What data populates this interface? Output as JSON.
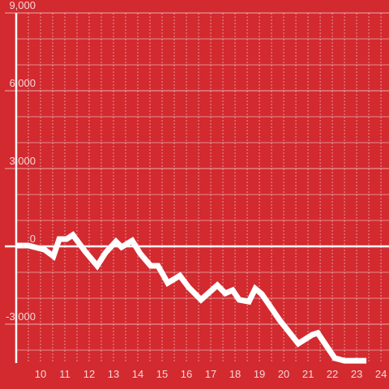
{
  "chart_data": {
    "type": "line",
    "background": "#d22a2f",
    "color": "#ffffff",
    "grid": true,
    "xlim": [
      9,
      24.33
    ],
    "xticks": [
      10,
      11,
      12,
      13,
      14,
      15,
      16,
      17,
      18,
      19,
      20,
      21,
      22,
      23,
      24
    ],
    "xminor": [
      9.5,
      10.5,
      11.5,
      12.5,
      13.5,
      14.5,
      15.5,
      16.5,
      17.5,
      18.5,
      19.5,
      20.5,
      21.5,
      22.5,
      23.5
    ],
    "ylim": [
      -4500,
      9000
    ],
    "yticks": [
      {
        "value": -3000,
        "label": "-3,000"
      },
      0,
      {
        "value": 3000,
        "label": "3,000"
      },
      {
        "value": 6000,
        "label": "6,000"
      },
      {
        "value": 9000,
        "label": "9,000"
      }
    ],
    "yminor": [
      -4000,
      -2000,
      -1000,
      1000,
      2000,
      4000,
      5000,
      7000,
      8000
    ],
    "x": [
      9.0,
      9.5,
      10.17,
      10.53,
      10.77,
      11.07,
      11.33,
      11.83,
      12.33,
      12.67,
      13.1,
      13.33,
      13.77,
      14.1,
      14.53,
      14.83,
      15.23,
      15.73,
      16.1,
      16.6,
      17.27,
      17.6,
      17.9,
      18.17,
      18.57,
      18.83,
      19.1,
      19.83,
      20.6,
      21.17,
      21.4,
      22.1,
      22.5,
      23.4
    ],
    "values": [
      30,
      30,
      -130,
      -380,
      280,
      280,
      440,
      -190,
      -750,
      -250,
      190,
      -30,
      220,
      -280,
      -750,
      -750,
      -1410,
      -1130,
      -1590,
      -2060,
      -1500,
      -1810,
      -1690,
      -2060,
      -2130,
      -1630,
      -1840,
      -2840,
      -3750,
      -3410,
      -3340,
      -4310,
      -4410,
      -4410
    ]
  }
}
